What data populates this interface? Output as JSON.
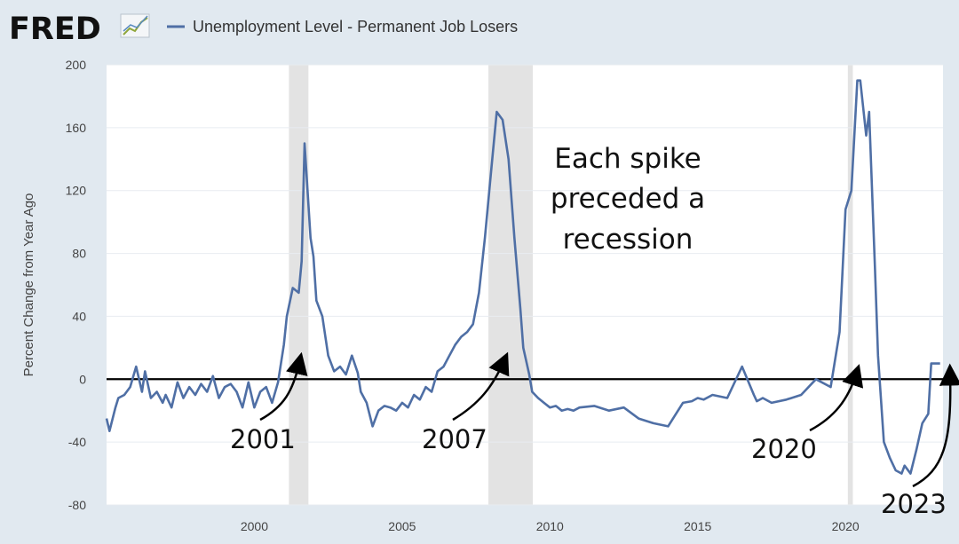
{
  "header": {
    "logo_text": "FRED",
    "legend_label": "Unemployment Level - Permanent Job Losers"
  },
  "colors": {
    "background": "#e1e9f0",
    "plot_background": "#ffffff",
    "series_line": "#4f6fa5",
    "recession_band": "#e3e3e3",
    "grid": "#e8ecf1",
    "zero_line": "#000000"
  },
  "annotations": {
    "main": [
      "Each spike",
      "preceded a",
      "recession"
    ],
    "years": [
      "2001",
      "2007",
      "2020",
      "2023"
    ]
  },
  "chart_data": {
    "type": "line",
    "title": "",
    "xlabel": "",
    "ylabel": "Percent Change from Year Ago",
    "xlim": [
      1995,
      2023.3
    ],
    "ylim": [
      -80,
      200
    ],
    "yticks": [
      "200",
      "160",
      "120",
      "80",
      "40",
      "0",
      "-40",
      "-80"
    ],
    "xticks": [
      "2000",
      "2005",
      "2010",
      "2015",
      "2020"
    ],
    "grid": true,
    "legend": "top-left",
    "recessions": [
      [
        2001.17,
        2001.83
      ],
      [
        2007.92,
        2009.42
      ],
      [
        2020.08,
        2020.25
      ]
    ],
    "series": [
      {
        "name": "Unemployment Level - Permanent Job Losers",
        "x": [
          1995.0,
          1995.1,
          1995.3,
          1995.4,
          1995.6,
          1995.8,
          1996.0,
          1996.2,
          1996.3,
          1996.5,
          1996.7,
          1996.9,
          1997.0,
          1997.2,
          1997.4,
          1997.6,
          1997.8,
          1998.0,
          1998.2,
          1998.4,
          1998.6,
          1998.8,
          1999.0,
          1999.2,
          1999.4,
          1999.6,
          1999.8,
          2000.0,
          2000.2,
          2000.4,
          2000.6,
          2000.8,
          2001.0,
          2001.1,
          2001.3,
          2001.5,
          2001.6,
          2001.7,
          2001.9,
          2002.0,
          2002.1,
          2002.3,
          2002.5,
          2002.7,
          2002.9,
          2003.1,
          2003.3,
          2003.5,
          2003.6,
          2003.8,
          2004.0,
          2004.2,
          2004.4,
          2004.6,
          2004.8,
          2005.0,
          2005.2,
          2005.4,
          2005.6,
          2005.8,
          2006.0,
          2006.2,
          2006.4,
          2006.6,
          2006.8,
          2007.0,
          2007.2,
          2007.4,
          2007.6,
          2007.8,
          2008.0,
          2008.2,
          2008.4,
          2008.6,
          2008.8,
          2009.0,
          2009.1,
          2009.3,
          2009.4,
          2009.6,
          2009.8,
          2010.0,
          2010.2,
          2010.4,
          2010.6,
          2010.8,
          2011.0,
          2011.5,
          2012.0,
          2012.5,
          2013.0,
          2013.5,
          2014.0,
          2014.5,
          2014.8,
          2015.0,
          2015.2,
          2015.5,
          2016.0,
          2016.5,
          2016.9,
          2017.0,
          2017.2,
          2017.5,
          2018.0,
          2018.5,
          2019.0,
          2019.5,
          2019.8,
          2020.0,
          2020.2,
          2020.4,
          2020.5,
          2020.7,
          2020.8,
          2021.0,
          2021.1,
          2021.3,
          2021.5,
          2021.7,
          2021.9,
          2022.0,
          2022.2,
          2022.4,
          2022.6,
          2022.8,
          2022.9,
          2023.0,
          2023.1,
          2023.2
        ],
        "values": [
          -25,
          -33,
          -18,
          -12,
          -10,
          -5,
          8,
          -8,
          5,
          -12,
          -8,
          -15,
          -10,
          -18,
          -2,
          -12,
          -5,
          -10,
          -3,
          -8,
          2,
          -12,
          -5,
          -3,
          -8,
          -18,
          -2,
          -18,
          -8,
          -5,
          -15,
          -2,
          22,
          40,
          58,
          55,
          75,
          150,
          90,
          78,
          50,
          40,
          15,
          5,
          8,
          3,
          15,
          4,
          -8,
          -15,
          -30,
          -20,
          -17,
          -18,
          -20,
          -15,
          -18,
          -10,
          -13,
          -5,
          -8,
          5,
          8,
          15,
          22,
          27,
          30,
          35,
          55,
          90,
          130,
          170,
          165,
          140,
          90,
          45,
          20,
          3,
          -8,
          -12,
          -15,
          -18,
          -17,
          -20,
          -19,
          -20,
          -18,
          -17,
          -20,
          -18,
          -25,
          -28,
          -30,
          -15,
          -14,
          -12,
          -13,
          -10,
          -12,
          8,
          -10,
          -14,
          -12,
          -15,
          -13,
          -10,
          0,
          -5,
          30,
          108,
          120,
          190,
          190,
          155,
          170,
          70,
          15,
          -40,
          -50,
          -58,
          -60,
          -55,
          -60,
          -45,
          -28,
          -22,
          10,
          10,
          10,
          10
        ]
      }
    ]
  }
}
